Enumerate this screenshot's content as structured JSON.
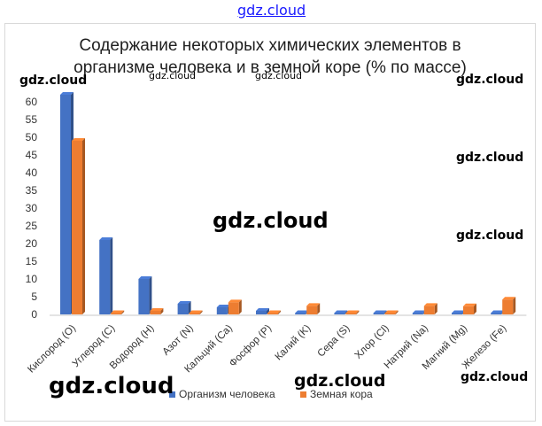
{
  "watermark_text": "gdz.cloud",
  "chart_data": {
    "type": "bar",
    "title": "Содержание некоторых химических элементов в организме человека и в земной коре (% по массе)",
    "title_lines": [
      "Содержание некоторых химических элементов в",
      "организме человека и в земной коре (% по массе)"
    ],
    "categories": [
      "Кислород (O)",
      "Углерод (C)",
      "Водород (H)",
      "Азот (N)",
      "Кальций (Ca)",
      "Фосфор (P)",
      "Калий (K)",
      "Сера (S)",
      "Хлор (Cl)",
      "Натрий (Na)",
      "Магний (Mg)",
      "Железо (Fe)"
    ],
    "series": [
      {
        "name": "Организм человека",
        "color": "#4472c4",
        "values": [
          62,
          21,
          10,
          3,
          2,
          1,
          0.2,
          0.2,
          0.2,
          0.1,
          0.1,
          0.01
        ]
      },
      {
        "name": "Земная кора",
        "color": "#ed7d31",
        "values": [
          49,
          0.3,
          1,
          0.1,
          3.4,
          0.1,
          2.4,
          0.1,
          0.2,
          2.4,
          2.3,
          4.2
        ]
      }
    ],
    "ylim": [
      0,
      60
    ],
    "yticks": [
      0,
      5,
      10,
      15,
      20,
      25,
      30,
      35,
      40,
      45,
      50,
      55,
      60
    ],
    "grid": false,
    "legend": "bottom-right"
  }
}
